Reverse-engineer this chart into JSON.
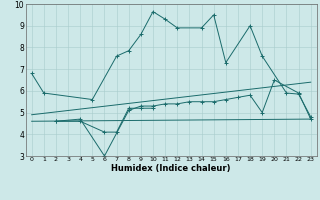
{
  "xlabel": "Humidex (Indice chaleur)",
  "background_color": "#cde8e8",
  "line_color": "#1a6b6b",
  "xlim": [
    -0.5,
    23.5
  ],
  "ylim": [
    3,
    10
  ],
  "xtick_vals": [
    0,
    1,
    2,
    3,
    4,
    5,
    6,
    7,
    8,
    9,
    10,
    11,
    12,
    13,
    14,
    15,
    16,
    17,
    18,
    19,
    20,
    21,
    22,
    23
  ],
  "ytick_vals": [
    3,
    4,
    5,
    6,
    7,
    8,
    9,
    10
  ],
  "series": [
    {
      "x": [
        0,
        1,
        5,
        7,
        8,
        9,
        10,
        11,
        12,
        14,
        15,
        16,
        18,
        19,
        21,
        22,
        23
      ],
      "y": [
        6.8,
        5.9,
        5.6,
        7.6,
        7.85,
        8.6,
        9.65,
        9.3,
        8.9,
        8.9,
        9.5,
        7.3,
        9.0,
        7.6,
        5.9,
        5.85,
        4.8
      ],
      "connected": true
    },
    {
      "x": [
        2,
        4,
        6,
        7,
        8,
        9,
        10
      ],
      "y": [
        4.6,
        4.6,
        4.1,
        4.1,
        5.2,
        5.2,
        5.2
      ],
      "connected": true
    },
    {
      "x": [
        2,
        4,
        6,
        8,
        9,
        10,
        11,
        12,
        13,
        14,
        15,
        16,
        17,
        18,
        19,
        20,
        22,
        23
      ],
      "y": [
        4.6,
        4.7,
        3.0,
        5.1,
        5.3,
        5.3,
        5.4,
        5.4,
        5.5,
        5.5,
        5.5,
        5.6,
        5.7,
        5.8,
        5.0,
        6.5,
        5.9,
        4.7
      ],
      "connected": true
    },
    {
      "x": [
        0,
        23
      ],
      "y": [
        4.9,
        6.4
      ],
      "connected": true
    },
    {
      "x": [
        0,
        23
      ],
      "y": [
        4.6,
        4.7
      ],
      "connected": true
    }
  ]
}
